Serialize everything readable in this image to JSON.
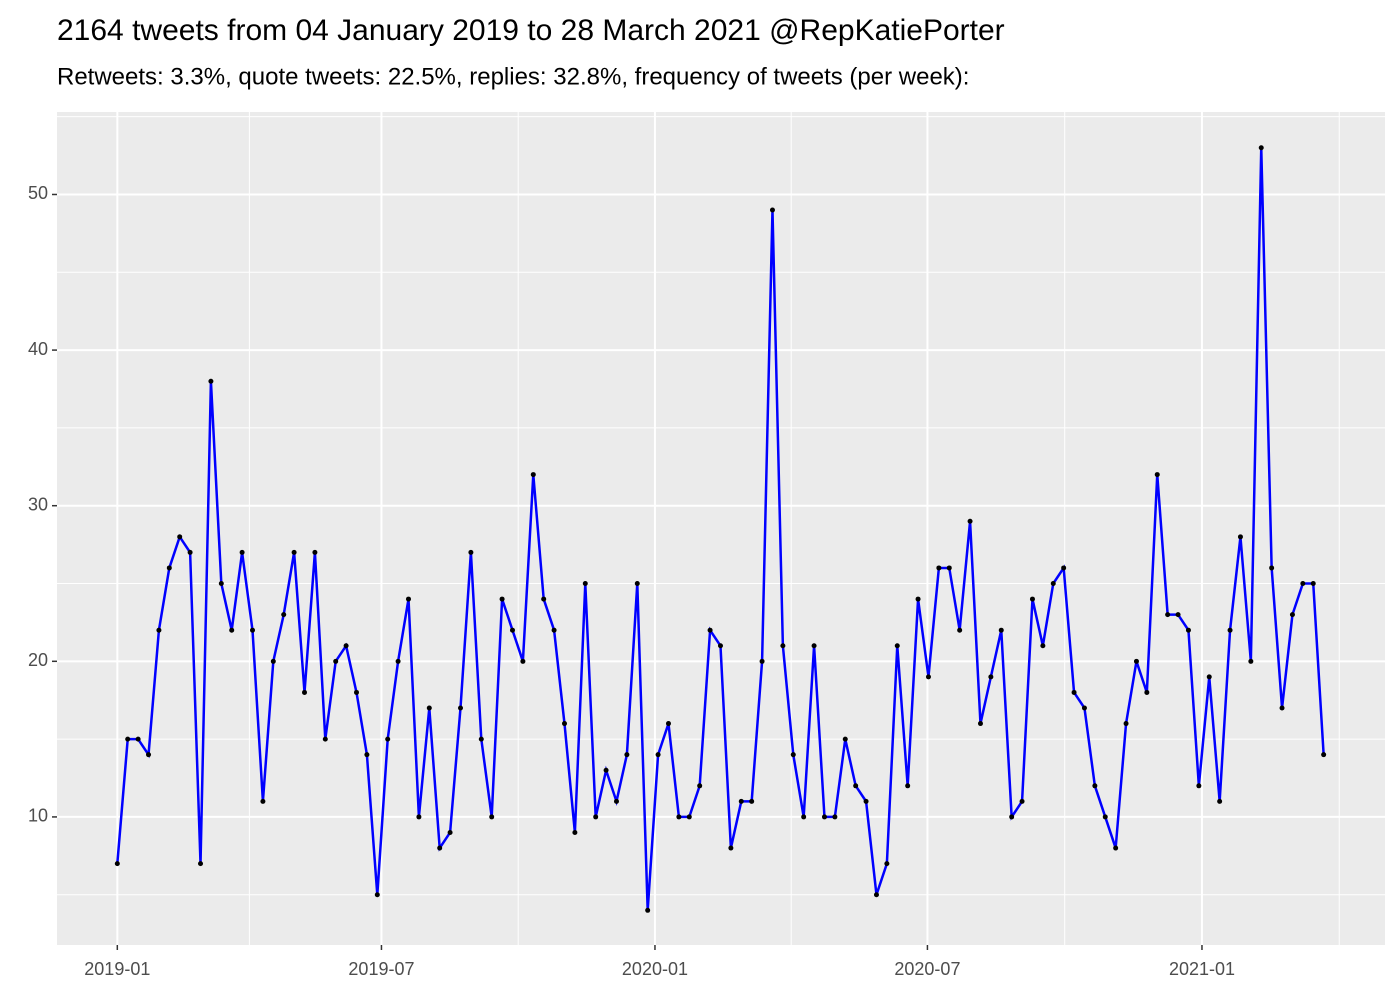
{
  "chart_data": {
    "type": "line",
    "title": "2164 tweets from 04 January 2019 to 28 March 2021 @RepKatiePorter",
    "subtitle": "Retweets: 3.3%, quote tweets: 22.5%, replies: 32.8%, frequency of tweets (per week):",
    "values": [
      7,
      15,
      15,
      14,
      22,
      26,
      28,
      27,
      7,
      38,
      25,
      22,
      27,
      22,
      11,
      20,
      23,
      27,
      18,
      27,
      15,
      20,
      21,
      18,
      14,
      5,
      15,
      20,
      24,
      10,
      17,
      8,
      9,
      17,
      27,
      15,
      10,
      24,
      22,
      20,
      32,
      24,
      22,
      16,
      9,
      25,
      10,
      13,
      11,
      14,
      25,
      4,
      14,
      16,
      10,
      10,
      12,
      22,
      21,
      8,
      11,
      11,
      20,
      49,
      21,
      14,
      10,
      21,
      10,
      10,
      15,
      12,
      11,
      5,
      7,
      21,
      12,
      24,
      19,
      26,
      26,
      22,
      29,
      16,
      19,
      22,
      10,
      11,
      24,
      21,
      25,
      26,
      18,
      17,
      12,
      10,
      8,
      16,
      20,
      18,
      32,
      23,
      23,
      22,
      12,
      19,
      11,
      22,
      28,
      20,
      53,
      26,
      17,
      23,
      25,
      25,
      14
    ],
    "color": "#0000ff",
    "point_color": "#000000",
    "xlim": [
      -5.8,
      121.9
    ],
    "xticks": [
      {
        "value": 0,
        "label": "2019-01"
      },
      {
        "value": 25.4,
        "label": "2019-07"
      },
      {
        "value": 51.7,
        "label": "2020-01"
      },
      {
        "value": 77.9,
        "label": "2020-07"
      },
      {
        "value": 104.3,
        "label": "2021-01"
      }
    ],
    "ylim": [
      1.77,
      55.3
    ],
    "yticks": [
      10,
      20,
      30,
      40,
      50
    ],
    "grid": true
  }
}
